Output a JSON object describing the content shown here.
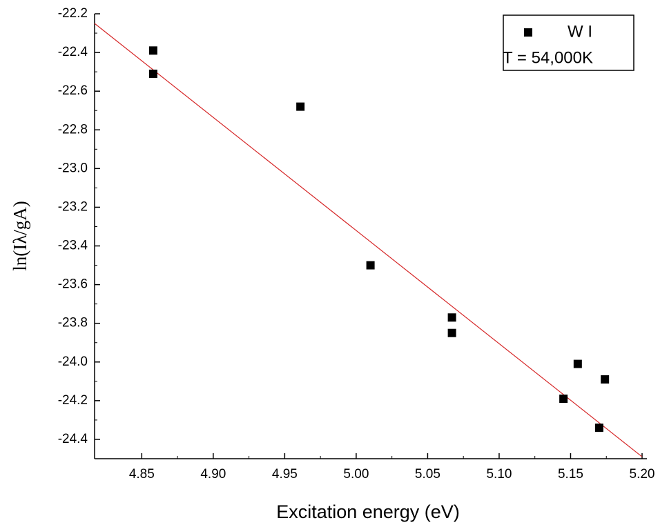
{
  "chart_data": {
    "type": "scatter",
    "xlabel": "Excitation energy (eV)",
    "ylabel": "ln(Iλ/gA)",
    "series": [
      {
        "name": "W I",
        "color": "#000000",
        "x": [
          4.858,
          4.858,
          4.961,
          5.01,
          5.067,
          5.067,
          5.145,
          5.155,
          5.17,
          5.174
        ],
        "values": [
          -22.39,
          -22.51,
          -22.68,
          -23.5,
          -23.77,
          -23.85,
          -24.19,
          -24.01,
          -24.34,
          -24.09
        ]
      }
    ],
    "fit": {
      "x": [
        4.817,
        5.2
      ],
      "values": [
        -22.25,
        -24.49
      ],
      "color": "#d62728"
    },
    "annotation": "T = 54,000K",
    "xlim": [
      4.817,
      5.2
    ],
    "xticks": [
      {
        "value": 4.85,
        "label": "4.85"
      },
      {
        "value": 4.9,
        "label": "4.90"
      },
      {
        "value": 4.95,
        "label": "4.95"
      },
      {
        "value": 5.0,
        "label": "5.00"
      },
      {
        "value": 5.05,
        "label": "5.05"
      },
      {
        "value": 5.1,
        "label": "5.10"
      },
      {
        "value": 5.15,
        "label": "5.15"
      },
      {
        "value": 5.2,
        "label": "5.20"
      }
    ],
    "ylim": [
      -24.5,
      -22.2
    ],
    "yticks": [
      {
        "value": -22.2,
        "label": "-22.2"
      },
      {
        "value": -22.4,
        "label": "-22.4"
      },
      {
        "value": -22.6,
        "label": "-22.6"
      },
      {
        "value": -22.8,
        "label": "-22.8"
      },
      {
        "value": -23.0,
        "label": "-23.0"
      },
      {
        "value": -23.2,
        "label": "-23.2"
      },
      {
        "value": -23.4,
        "label": "-23.4"
      },
      {
        "value": -23.6,
        "label": "-23.6"
      },
      {
        "value": -23.8,
        "label": "-23.8"
      },
      {
        "value": -24.0,
        "label": "-24.0"
      },
      {
        "value": -24.2,
        "label": "-24.2"
      },
      {
        "value": -24.4,
        "label": "-24.4"
      }
    ],
    "legend": "upper right",
    "grid": false
  }
}
